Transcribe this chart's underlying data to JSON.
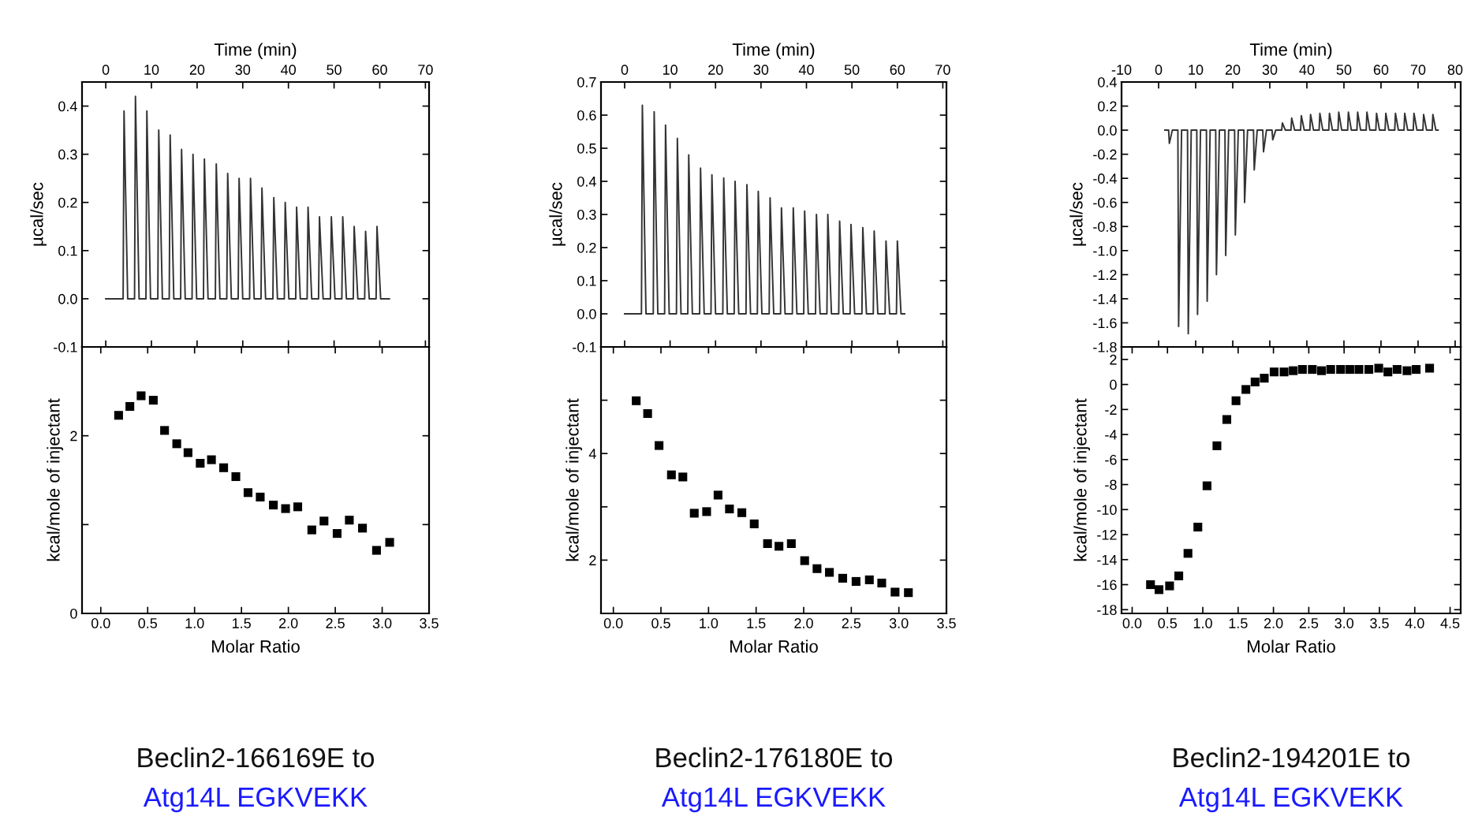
{
  "chart_data": [
    {
      "type": "line",
      "xlabel": "Time (min)",
      "ylabel": "µcal/sec",
      "xlim": [
        -5.2,
        70.8
      ],
      "ylim": [
        -0.1,
        0.45
      ],
      "xticks": [
        0,
        10,
        20,
        30,
        40,
        50,
        60,
        70
      ],
      "yticks": [
        -0.1,
        {
          "value": 0,
          "label": "0.0"
        },
        0.1,
        0.2,
        0.3,
        0.4
      ],
      "grid": false,
      "marker": "none",
      "line_style": "solid",
      "series": [
        {
          "color": "#333333",
          "x": [
            0,
            3.8,
            4.0,
            4.8,
            6.3,
            6.5,
            7.3,
            8.8,
            9.0,
            9.8,
            11.4,
            11.6,
            12.4,
            13.9,
            14.1,
            14.9,
            16.4,
            16.6,
            17.4,
            18.9,
            19.1,
            19.9,
            21.4,
            21.6,
            22.4,
            24.0,
            24.2,
            25.0,
            26.5,
            26.7,
            27.5,
            29.0,
            29.2,
            30.0,
            31.5,
            31.7,
            32.5,
            34.0,
            34.2,
            35.0,
            36.6,
            36.8,
            37.6,
            39.1,
            39.3,
            40.1,
            41.6,
            41.8,
            42.6,
            44.1,
            44.3,
            45.1,
            46.6,
            46.8,
            47.6,
            49.2,
            49.4,
            50.2,
            51.7,
            51.9,
            52.7,
            54.2,
            54.4,
            55.2,
            56.7,
            56.9,
            57.7,
            59.2,
            59.4,
            60.2,
            62.1
          ],
          "values": [
            0,
            0,
            0.39,
            0,
            0,
            0.42,
            0,
            0,
            0.39,
            0,
            0,
            0.35,
            0,
            0,
            0.34,
            0,
            0,
            0.31,
            0,
            0,
            0.3,
            0,
            0,
            0.29,
            0,
            0,
            0.28,
            0,
            0,
            0.26,
            0,
            0,
            0.25,
            0,
            0,
            0.25,
            0,
            0,
            0.23,
            0,
            0,
            0.21,
            0,
            0,
            0.2,
            0,
            0,
            0.19,
            0,
            0,
            0.19,
            0,
            0,
            0.17,
            0,
            0,
            0.17,
            0,
            0,
            0.17,
            0,
            0,
            0.15,
            0,
            0,
            0.14,
            0,
            0,
            0.15,
            0,
            0
          ]
        }
      ]
    },
    {
      "type": "scatter",
      "xlabel": "Molar Ratio",
      "ylabel": "kcal/mole of injectant",
      "xlim": [
        -0.2,
        3.5
      ],
      "ylim": [
        0,
        3
      ],
      "xticks": [
        {
          "value": 0,
          "label": "0.0"
        },
        0.5,
        {
          "value": 1,
          "label": "1.0"
        },
        1.5,
        {
          "value": 2,
          "label": "2.0"
        },
        2.5,
        {
          "value": 3,
          "label": "3.0"
        },
        3.5
      ],
      "yticks": [
        0,
        {
          "value": 1,
          "label": null
        },
        2,
        {
          "value": 3,
          "label": null
        }
      ],
      "grid": false,
      "marker": "square",
      "annotations": [
        "Beclin2-166169E to",
        "Atg14L EGKVEKK"
      ],
      "series": [
        {
          "color": "#000000",
          "x": [
            0.19,
            0.31,
            0.43,
            0.56,
            0.68,
            0.81,
            0.93,
            1.06,
            1.18,
            1.31,
            1.44,
            1.57,
            1.7,
            1.84,
            1.97,
            2.1,
            2.25,
            2.38,
            2.52,
            2.65,
            2.79,
            2.94,
            3.08
          ],
          "values": [
            2.23,
            2.33,
            2.45,
            2.4,
            2.06,
            1.91,
            1.81,
            1.69,
            1.73,
            1.64,
            1.54,
            1.36,
            1.31,
            1.22,
            1.18,
            1.2,
            0.94,
            1.04,
            0.9,
            1.05,
            0.96,
            0.71,
            0.8
          ]
        }
      ]
    },
    {
      "type": "line",
      "xlabel": "Time (min)",
      "ylabel": "µcal/sec",
      "xlim": [
        -5.2,
        70.8
      ],
      "ylim": [
        -0.1,
        0.7
      ],
      "xticks": [
        0,
        10,
        20,
        30,
        40,
        50,
        60,
        70
      ],
      "yticks": [
        -0.1,
        {
          "value": 0,
          "label": "0.0"
        },
        0.1,
        0.2,
        0.3,
        0.4,
        0.5,
        0.6,
        0.7
      ],
      "grid": false,
      "marker": "none",
      "line_style": "solid",
      "series": [
        {
          "color": "#333333",
          "x": [
            0,
            3.7,
            3.9,
            4.7,
            6.3,
            6.5,
            7.3,
            8.8,
            9.0,
            9.8,
            11.4,
            11.6,
            12.4,
            13.9,
            14.1,
            14.9,
            16.5,
            16.7,
            17.5,
            19.0,
            19.2,
            20.0,
            21.6,
            21.8,
            22.6,
            24.1,
            24.3,
            25.1,
            26.7,
            26.9,
            27.7,
            29.2,
            29.4,
            30.2,
            31.8,
            32.0,
            32.8,
            34.3,
            34.5,
            35.3,
            36.9,
            37.1,
            37.9,
            39.4,
            39.6,
            40.4,
            42.0,
            42.2,
            43.0,
            44.5,
            44.7,
            45.5,
            47.1,
            47.3,
            48.1,
            49.6,
            49.8,
            50.6,
            52.2,
            52.4,
            53.2,
            54.7,
            54.9,
            55.7,
            57.3,
            57.5,
            58.3,
            59.8,
            60.0,
            60.8,
            61.6
          ],
          "values": [
            0,
            0,
            0.63,
            0,
            0,
            0.61,
            0,
            0,
            0.57,
            0,
            0,
            0.53,
            0,
            0,
            0.48,
            0,
            0,
            0.44,
            0,
            0,
            0.42,
            0,
            0,
            0.41,
            0,
            0,
            0.4,
            0,
            0,
            0.39,
            0,
            0,
            0.37,
            0,
            0,
            0.35,
            0,
            0,
            0.32,
            0,
            0,
            0.32,
            0,
            0,
            0.31,
            0,
            0,
            0.3,
            0,
            0,
            0.3,
            0,
            0,
            0.28,
            0,
            0,
            0.27,
            0,
            0,
            0.26,
            0,
            0,
            0.25,
            0,
            0,
            0.22,
            0,
            0,
            0.22,
            0,
            0
          ]
        }
      ]
    },
    {
      "type": "scatter",
      "xlabel": "Molar Ratio",
      "ylabel": "kcal/mole of injectant",
      "xlim": [
        -0.13,
        3.5
      ],
      "ylim": [
        1,
        6
      ],
      "xticks": [
        {
          "value": 0,
          "label": "0.0"
        },
        0.5,
        {
          "value": 1,
          "label": "1.0"
        },
        1.5,
        {
          "value": 2,
          "label": "2.0"
        },
        2.5,
        {
          "value": 3,
          "label": "3.0"
        },
        3.5
      ],
      "yticks": [
        2,
        {
          "value": 3,
          "label": null
        },
        4,
        {
          "value": 5,
          "label": null
        }
      ],
      "grid": false,
      "marker": "square",
      "annotations": [
        "Beclin2-176180E to",
        "Atg14L EGKVEKK"
      ],
      "series": [
        {
          "color": "#000000",
          "x": [
            0.24,
            0.36,
            0.48,
            0.61,
            0.73,
            0.85,
            0.98,
            1.1,
            1.22,
            1.35,
            1.48,
            1.62,
            1.74,
            1.87,
            2.01,
            2.14,
            2.27,
            2.41,
            2.55,
            2.69,
            2.82,
            2.96,
            3.1
          ],
          "values": [
            4.99,
            4.75,
            4.15,
            3.6,
            3.56,
            2.88,
            2.91,
            3.22,
            2.96,
            2.89,
            2.68,
            2.31,
            2.26,
            2.31,
            1.99,
            1.84,
            1.77,
            1.66,
            1.6,
            1.63,
            1.57,
            1.4,
            1.39
          ]
        }
      ]
    },
    {
      "type": "line",
      "xlabel": "Time (min)",
      "ylabel": "µcal/sec",
      "xlim": [
        -10,
        81.5
      ],
      "ylim": [
        -1.8,
        0.4
      ],
      "xticks": [
        -10,
        0,
        10,
        20,
        30,
        40,
        50,
        60,
        70,
        80
      ],
      "yticks": [
        0.4,
        0.2,
        {
          "value": 0,
          "label": "0.0"
        },
        -0.2,
        -0.4,
        -0.6,
        -0.8,
        {
          "value": -1,
          "label": "-1.0"
        },
        -1.2,
        -1.4,
        -1.6,
        -1.8
      ],
      "grid": false,
      "marker": "none",
      "line_style": "solid",
      "series": [
        {
          "color": "#333333",
          "x": [
            1.7,
            2.7,
            2.9,
            3.7,
            5.2,
            5.4,
            6.2,
            7.8,
            8.0,
            8.8,
            10.3,
            10.5,
            11.3,
            12.9,
            13.1,
            13.9,
            15.4,
            15.6,
            16.4,
            17.9,
            18.1,
            18.9,
            20.5,
            20.7,
            21.5,
            23.0,
            23.2,
            24.0,
            25.6,
            25.8,
            26.6,
            28.1,
            28.3,
            29.1,
            30.6,
            30.8,
            31.6,
            33.2,
            33.4,
            34.2,
            35.7,
            35.9,
            36.7,
            38.3,
            38.5,
            39.3,
            40.8,
            41.0,
            41.8,
            43.3,
            43.5,
            44.3,
            45.9,
            46.1,
            46.9,
            48.4,
            48.6,
            49.4,
            51.0,
            51.2,
            52.0,
            53.5,
            53.7,
            54.5,
            56.0,
            56.2,
            57.0,
            58.6,
            58.8,
            59.6,
            61.1,
            61.3,
            62.1,
            63.7,
            63.9,
            64.7,
            66.2,
            66.4,
            67.2,
            68.7,
            68.9,
            69.7,
            71.3,
            71.5,
            72.3,
            73.8,
            74.0,
            74.8,
            75.4
          ],
          "values": [
            0,
            0,
            -0.11,
            0,
            0,
            -1.63,
            0,
            0,
            -1.69,
            0,
            0,
            -1.53,
            0,
            0,
            -1.42,
            0,
            0,
            -1.2,
            0,
            0,
            -1.04,
            0,
            0,
            -0.87,
            0,
            0,
            -0.6,
            0,
            0,
            -0.33,
            0,
            0,
            -0.18,
            0,
            0,
            -0.08,
            0,
            0,
            0.06,
            0,
            0,
            0.1,
            0,
            0,
            0.12,
            0,
            0,
            0.13,
            0,
            0,
            0.14,
            0,
            0,
            0.14,
            0,
            0,
            0.15,
            0,
            0,
            0.15,
            0,
            0,
            0.15,
            0,
            0,
            0.15,
            0,
            0,
            0.14,
            0,
            0,
            0.14,
            0,
            0,
            0.14,
            0,
            0,
            0.14,
            0,
            0,
            0.14,
            0,
            0,
            0.13,
            0,
            0,
            0.13,
            0,
            0
          ]
        }
      ]
    },
    {
      "type": "scatter",
      "xlabel": "Molar Ratio",
      "ylabel": "kcal/mole of injectant",
      "xlim": [
        -0.15,
        4.65
      ],
      "ylim": [
        -18.3,
        3
      ],
      "xticks": [
        {
          "value": 0,
          "label": "0.0"
        },
        0.5,
        {
          "value": 1,
          "label": "1.0"
        },
        1.5,
        {
          "value": 2,
          "label": "2.0"
        },
        2.5,
        {
          "value": 3,
          "label": "3.0"
        },
        3.5,
        {
          "value": 4,
          "label": "4.0"
        },
        4.5
      ],
      "yticks": [
        -18,
        -16,
        -14,
        -12,
        -10,
        -8,
        -6,
        -4,
        -2,
        0,
        2
      ],
      "grid": false,
      "marker": "square",
      "annotations": [
        "Beclin2-194201E to",
        "Atg14L EGKVEKK"
      ],
      "series": [
        {
          "color": "#000000",
          "x": [
            0.26,
            0.38,
            0.53,
            0.66,
            0.79,
            0.93,
            1.06,
            1.2,
            1.34,
            1.47,
            1.61,
            1.74,
            1.87,
            2.01,
            2.15,
            2.28,
            2.41,
            2.55,
            2.68,
            2.81,
            2.95,
            3.08,
            3.21,
            3.35,
            3.49,
            3.62,
            3.75,
            3.89,
            4.02,
            4.21
          ],
          "values": [
            -16.0,
            -16.4,
            -16.1,
            -15.3,
            -13.5,
            -11.4,
            -8.1,
            -4.9,
            -2.8,
            -1.3,
            -0.4,
            0.2,
            0.5,
            1.0,
            1.0,
            1.1,
            1.2,
            1.2,
            1.1,
            1.2,
            1.2,
            1.2,
            1.2,
            1.2,
            1.3,
            1.0,
            1.2,
            1.1,
            1.2,
            1.3
          ]
        }
      ]
    }
  ]
}
